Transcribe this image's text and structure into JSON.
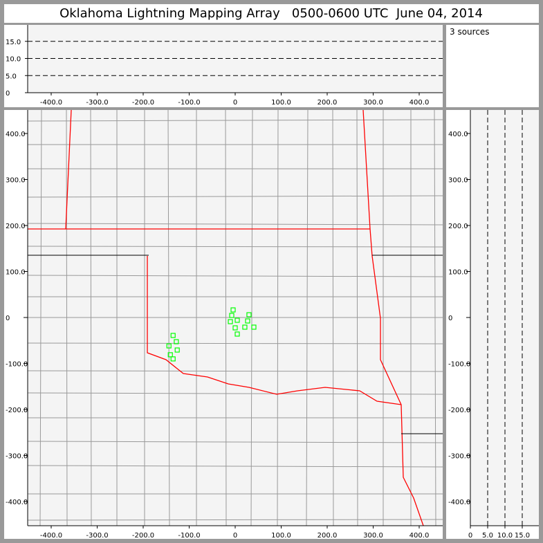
{
  "title": "Oklahoma Lightning Mapping Array   0500-0600 UTC  June 04, 2014",
  "source_count_label": "3 sources",
  "colors": {
    "source": "#00ff00",
    "state_border": "#ff0000",
    "county": "#999999",
    "plot_bg": "#f4f4f4",
    "frame": "#999999"
  },
  "chart_data": [
    {
      "type": "scatter",
      "panel": "altitude-vs-east-west",
      "xlim": [
        -450,
        450
      ],
      "ylim": [
        0,
        20
      ],
      "x_ticks": [
        "-400.0",
        "-300.0",
        "-200.0",
        "-100.0",
        "0",
        "100.0",
        "200.0",
        "300.0",
        "400.0"
      ],
      "x_tick_values": [
        -400,
        -300,
        -200,
        -100,
        0,
        100,
        200,
        300,
        400
      ],
      "y_ticks": [
        "0",
        "5.0",
        "10.0",
        "15.0"
      ],
      "y_tick_values": [
        0,
        5,
        10,
        15
      ],
      "reference_lines": [
        5,
        10,
        15
      ],
      "points": []
    },
    {
      "type": "scatter",
      "panel": "plan-view-map",
      "xlim": [
        -450,
        450
      ],
      "ylim": [
        -450,
        450
      ],
      "x_ticks": [
        "-400.0",
        "-300.0",
        "-200.0",
        "-100.0",
        "0",
        "100.0",
        "200.0",
        "300.0",
        "400.0"
      ],
      "x_tick_values": [
        -400,
        -300,
        -200,
        -100,
        0,
        100,
        200,
        300,
        400
      ],
      "y_ticks": [
        "400.0",
        "300.0",
        "200.0",
        "100.0",
        "0",
        "-100.0",
        "-200.0",
        "-300.0",
        "-400.0"
      ],
      "y_tick_values": [
        400,
        300,
        200,
        100,
        0,
        -100,
        -200,
        -300,
        -400
      ],
      "points": [
        {
          "x": -4.5,
          "y": 16.5
        },
        {
          "x": -7.5,
          "y": 4.5
        },
        {
          "x": -10.5,
          "y": -9
        },
        {
          "x": 4.5,
          "y": -6
        },
        {
          "x": 0,
          "y": -22.5
        },
        {
          "x": 4.5,
          "y": -36
        },
        {
          "x": 30,
          "y": 6
        },
        {
          "x": 27,
          "y": -7.5
        },
        {
          "x": 21,
          "y": -21
        },
        {
          "x": 40.6,
          "y": -21
        },
        {
          "x": -135,
          "y": -39
        },
        {
          "x": -128,
          "y": -52.6
        },
        {
          "x": -144,
          "y": -61.7
        },
        {
          "x": -126,
          "y": -70.7
        },
        {
          "x": -141,
          "y": -81
        },
        {
          "x": -135,
          "y": -90
        }
      ]
    },
    {
      "type": "scatter",
      "panel": "north-south-vs-altitude",
      "xlim": [
        0,
        20
      ],
      "ylim": [
        -450,
        450
      ],
      "x_ticks": [
        "0",
        "5.0",
        "10.0",
        "15.0"
      ],
      "x_tick_values": [
        0,
        5,
        10,
        15
      ],
      "y_ticks": [
        "400.0",
        "300.0",
        "200.0",
        "100.0",
        "0",
        "-100.0",
        "-200.0",
        "-300.0",
        "-400.0"
      ],
      "y_tick_values": [
        400,
        300,
        200,
        100,
        0,
        -100,
        -200,
        -300,
        -400
      ],
      "reference_lines": [
        5,
        10,
        15
      ],
      "points": []
    }
  ]
}
